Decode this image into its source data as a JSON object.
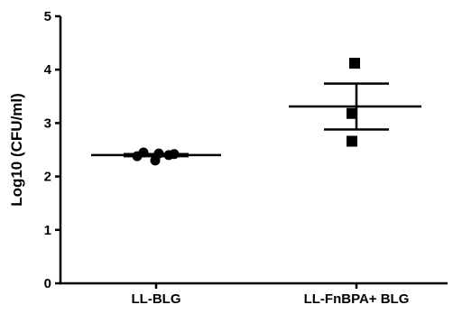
{
  "chart_data": {
    "type": "scatter",
    "title": "",
    "xlabel": "",
    "ylabel": "Log10 (CFU/ml)",
    "ylim": [
      0,
      5
    ],
    "yticks": [
      "0",
      "1",
      "2",
      "3",
      "4",
      "5"
    ],
    "categories": [
      "LL-BLG",
      "LL-FnBPA+ BLG"
    ],
    "grid": false,
    "legend": "none",
    "groups": [
      {
        "category": "LL-BLG",
        "marker": "circle",
        "points": [
          2.38,
          2.45,
          2.3,
          2.43,
          2.4,
          2.42
        ],
        "mean": 2.4,
        "sem_upper": 2.42,
        "sem_lower": 2.38
      },
      {
        "category": "LL-FnBPA+ BLG",
        "marker": "square",
        "points": [
          4.12,
          3.18,
          2.66
        ],
        "mean": 3.31,
        "sem_upper": 3.74,
        "sem_lower": 2.88
      }
    ],
    "colors": {
      "marker": "#000000",
      "axis": "#000000"
    }
  }
}
